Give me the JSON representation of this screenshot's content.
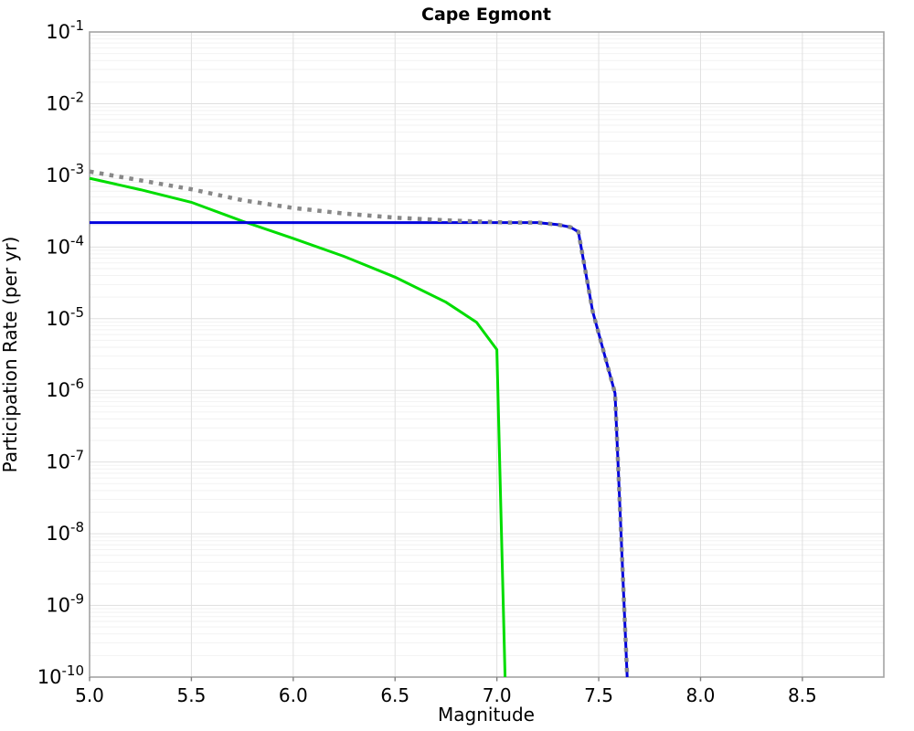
{
  "window": {
    "title": "Cape Egmont"
  },
  "chart_data": {
    "type": "line",
    "title": "Cape Egmont",
    "xlabel": "Magnitude",
    "ylabel": "Participation Rate (per yr)",
    "xlim": [
      5.0,
      8.9
    ],
    "ylim": [
      1e-10,
      0.1
    ],
    "y_scale": "log",
    "grid": true,
    "legend_position": "none",
    "x_ticks": [
      5.0,
      5.5,
      6.0,
      6.5,
      7.0,
      7.5,
      8.0,
      8.5
    ],
    "x_tick_labels": [
      "5.0",
      "5.5",
      "6.0",
      "6.5",
      "7.0",
      "7.5",
      "8.0",
      "8.5"
    ],
    "y_tick_values": [
      0.1,
      0.01,
      0.001,
      0.0001,
      1e-05,
      1e-06,
      1e-07,
      1e-08,
      1e-09,
      1e-10
    ],
    "y_tick_labels": [
      "10^-1",
      "10^-2",
      "10^-3",
      "10^-4",
      "10^-5",
      "10^-6",
      "10^-7",
      "10^-8",
      "10^-9",
      "10^-10"
    ],
    "series": [
      {
        "name": "green-solid-curve",
        "color": "#00dd00",
        "style": "solid",
        "width": 3,
        "points": [
          [
            5.0,
            0.00091
          ],
          [
            5.25,
            0.00063
          ],
          [
            5.5,
            0.00042
          ],
          [
            5.75,
            0.00023
          ],
          [
            6.0,
            0.000132
          ],
          [
            6.25,
            7.4e-05
          ],
          [
            6.5,
            3.8e-05
          ],
          [
            6.75,
            1.7e-05
          ],
          [
            6.9,
            8.9e-06
          ],
          [
            7.0,
            3.7e-06
          ],
          [
            7.04,
            1e-10
          ]
        ]
      },
      {
        "name": "blue-solid-curve",
        "color": "#0000dd",
        "style": "solid",
        "width": 3,
        "points": [
          [
            5.0,
            0.000219
          ],
          [
            7.2,
            0.000219
          ],
          [
            7.3,
            0.000205
          ],
          [
            7.36,
            0.00019
          ],
          [
            7.4,
            0.000163
          ],
          [
            7.47,
            1.27e-05
          ],
          [
            7.58,
            9.1e-07
          ],
          [
            7.64,
            1e-10
          ]
        ]
      },
      {
        "name": "gray-dotted-curve",
        "color": "#888888",
        "style": "dotted",
        "width": 4.5,
        "points": [
          [
            5.0,
            0.00113
          ],
          [
            5.25,
            0.00085
          ],
          [
            5.5,
            0.00064
          ],
          [
            5.75,
            0.00045
          ],
          [
            6.0,
            0.000351
          ],
          [
            6.25,
            0.000293
          ],
          [
            6.5,
            0.000257
          ],
          [
            6.75,
            0.000236
          ],
          [
            6.9,
            0.000228
          ],
          [
            7.0,
            0.000223
          ],
          [
            7.04,
            0.000219
          ],
          [
            7.2,
            0.000219
          ],
          [
            7.3,
            0.000205
          ],
          [
            7.36,
            0.00019
          ],
          [
            7.4,
            0.000163
          ],
          [
            7.47,
            1.27e-05
          ],
          [
            7.58,
            9.1e-07
          ],
          [
            7.64,
            1e-10
          ]
        ]
      }
    ],
    "colors": {
      "grid_major": "#e0e0e0",
      "grid_minor": "#f2f2f2",
      "frame": "#a3a3a3",
      "tick": "#808080",
      "text": "#000000",
      "background": "#ffffff"
    }
  }
}
